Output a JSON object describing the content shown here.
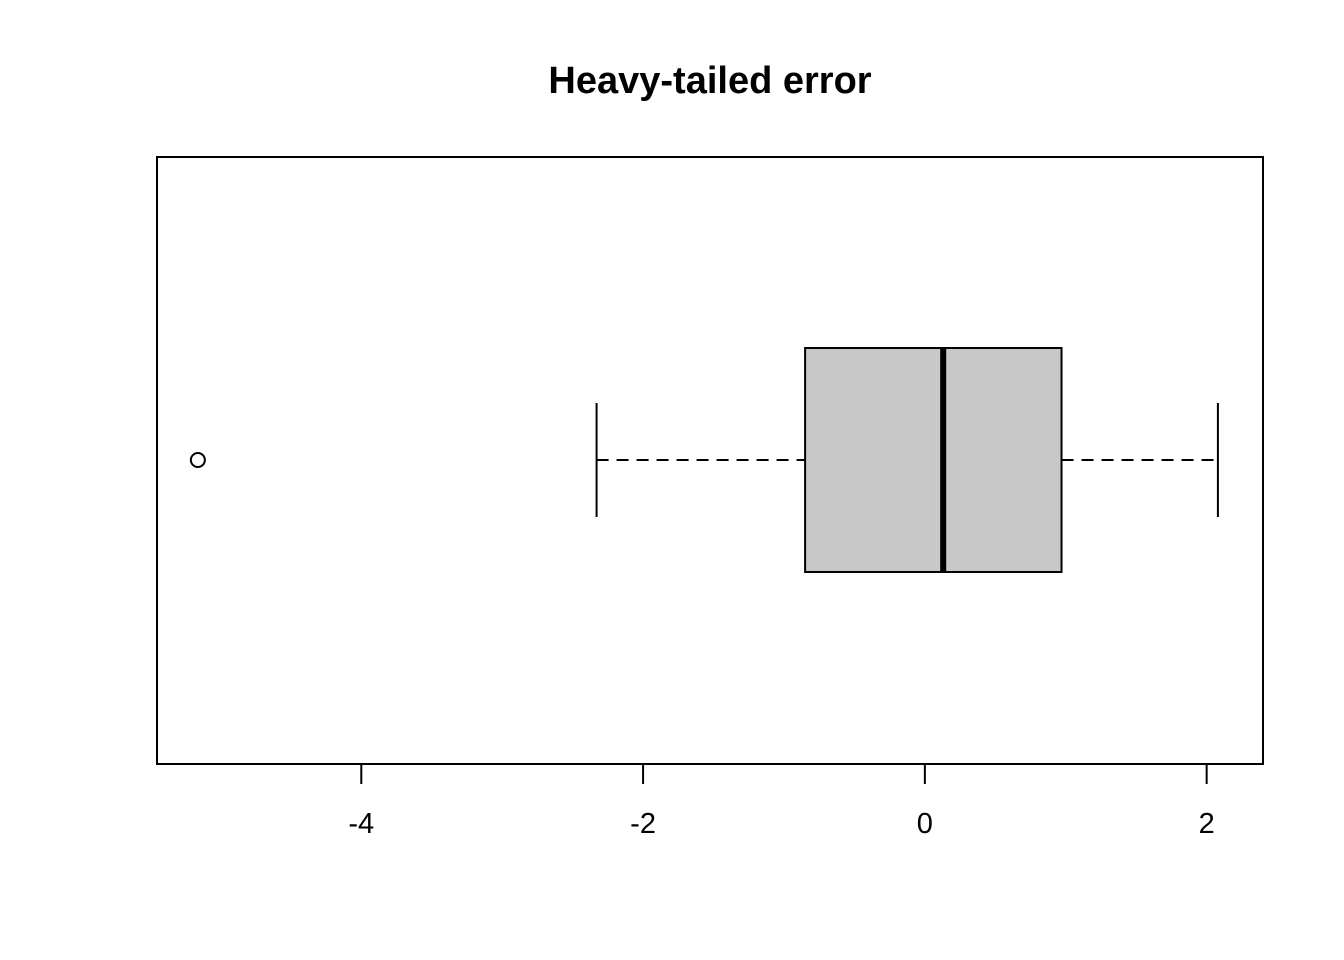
{
  "chart_data": {
    "type": "boxplot",
    "orientation": "horizontal",
    "title": "Heavy-tailed error",
    "xlabel": "",
    "ylabel": "",
    "xlim": [
      -5.45,
      2.4
    ],
    "x_ticks": [
      -4,
      -2,
      0,
      2
    ],
    "x_tick_labels": [
      "-4",
      "-2",
      "0",
      "2"
    ],
    "grid": false,
    "box": {
      "whisker_low": -2.33,
      "q1": -0.85,
      "median": 0.13,
      "q3": 0.97,
      "whisker_high": 2.08,
      "outliers": [
        -5.16
      ],
      "fill_color": "#c8c8c8",
      "line_color": "#000000"
    }
  }
}
